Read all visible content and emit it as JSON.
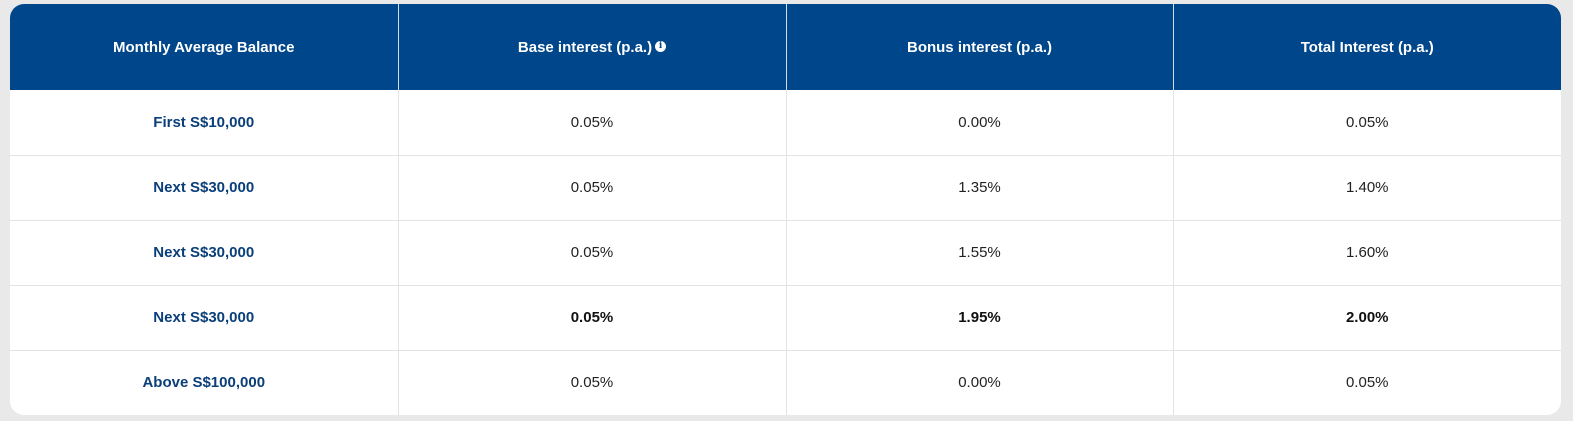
{
  "headers": {
    "balance": "Monthly Average Balance",
    "base": "Base interest (p.a.)",
    "bonus": "Bonus interest (p.a.)",
    "total": "Total Interest (p.a.)"
  },
  "rows": [
    {
      "tier": "First S$10,000",
      "base": "0.05%",
      "bonus": "0.00%",
      "total": "0.05%",
      "highlighted": false
    },
    {
      "tier": "Next S$30,000",
      "base": "0.05%",
      "bonus": "1.35%",
      "total": "1.40%",
      "highlighted": false
    },
    {
      "tier": "Next S$30,000",
      "base": "0.05%",
      "bonus": "1.55%",
      "total": "1.60%",
      "highlighted": false
    },
    {
      "tier": "Next S$30,000",
      "base": "0.05%",
      "bonus": "1.95%",
      "total": "2.00%",
      "highlighted": true
    },
    {
      "tier": "Above S$100,000",
      "base": "0.05%",
      "bonus": "0.00%",
      "total": "0.05%",
      "highlighted": false
    }
  ],
  "colors": {
    "header_bg": "#00468b",
    "tier_text": "#0a3f7a"
  },
  "icons": {
    "base_info": "info-icon"
  }
}
